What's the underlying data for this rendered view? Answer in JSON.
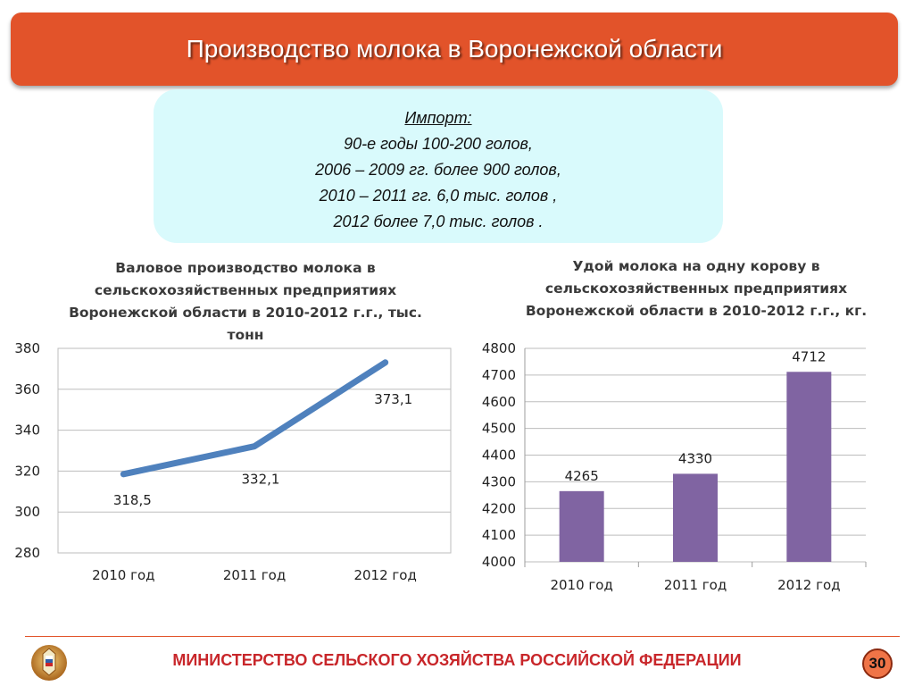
{
  "slide": {
    "title": "Производство молока в Воронежской области",
    "import": {
      "heading": "Импорт:",
      "lines": [
        "90-е годы  100-200 голов,",
        "2006 – 2009 гг.  более  900 голов,",
        "2010 – 2011 гг.  6,0 тыс. голов ,",
        "2012 более 7,0 тыс. голов ."
      ]
    },
    "footer": "МИНИСТЕРСТВО СЕЛЬСКОГО ХОЗЯЙСТВА РОССИЙСКОЙ ФЕДЕРАЦИИ",
    "page_number": "30"
  },
  "chart_data": [
    {
      "type": "line",
      "title_lines": [
        "Валовое производство молока в",
        "сельскохозяйственных предприятиях",
        "Воронежской области в 2010-2012 г.г., тыс.",
        "тонн"
      ],
      "categories": [
        "2010 год",
        "2011 год",
        "2012 год"
      ],
      "values": [
        318.5,
        332.1,
        373.1
      ],
      "data_labels": [
        "318,5",
        "332,1",
        "373,1"
      ],
      "ylim": [
        280,
        380
      ],
      "yticks": [
        280,
        300,
        320,
        340,
        360,
        380
      ],
      "grid": true,
      "color": "#4F81BD"
    },
    {
      "type": "bar",
      "title_lines": [
        "Удой молока на одну корову в",
        "сельскохозяйственных предприятиях",
        "Воронежской области в 2010-2012 г.г., кг."
      ],
      "categories": [
        "2010 год",
        "2011 год",
        "2012 год"
      ],
      "values": [
        4265,
        4330,
        4712
      ],
      "data_labels": [
        "4265",
        "4330",
        "4712"
      ],
      "ylim": [
        4000,
        4800
      ],
      "yticks": [
        4000,
        4100,
        4200,
        4300,
        4400,
        4500,
        4600,
        4700,
        4800
      ],
      "grid": true,
      "color": "#8064A2"
    }
  ]
}
